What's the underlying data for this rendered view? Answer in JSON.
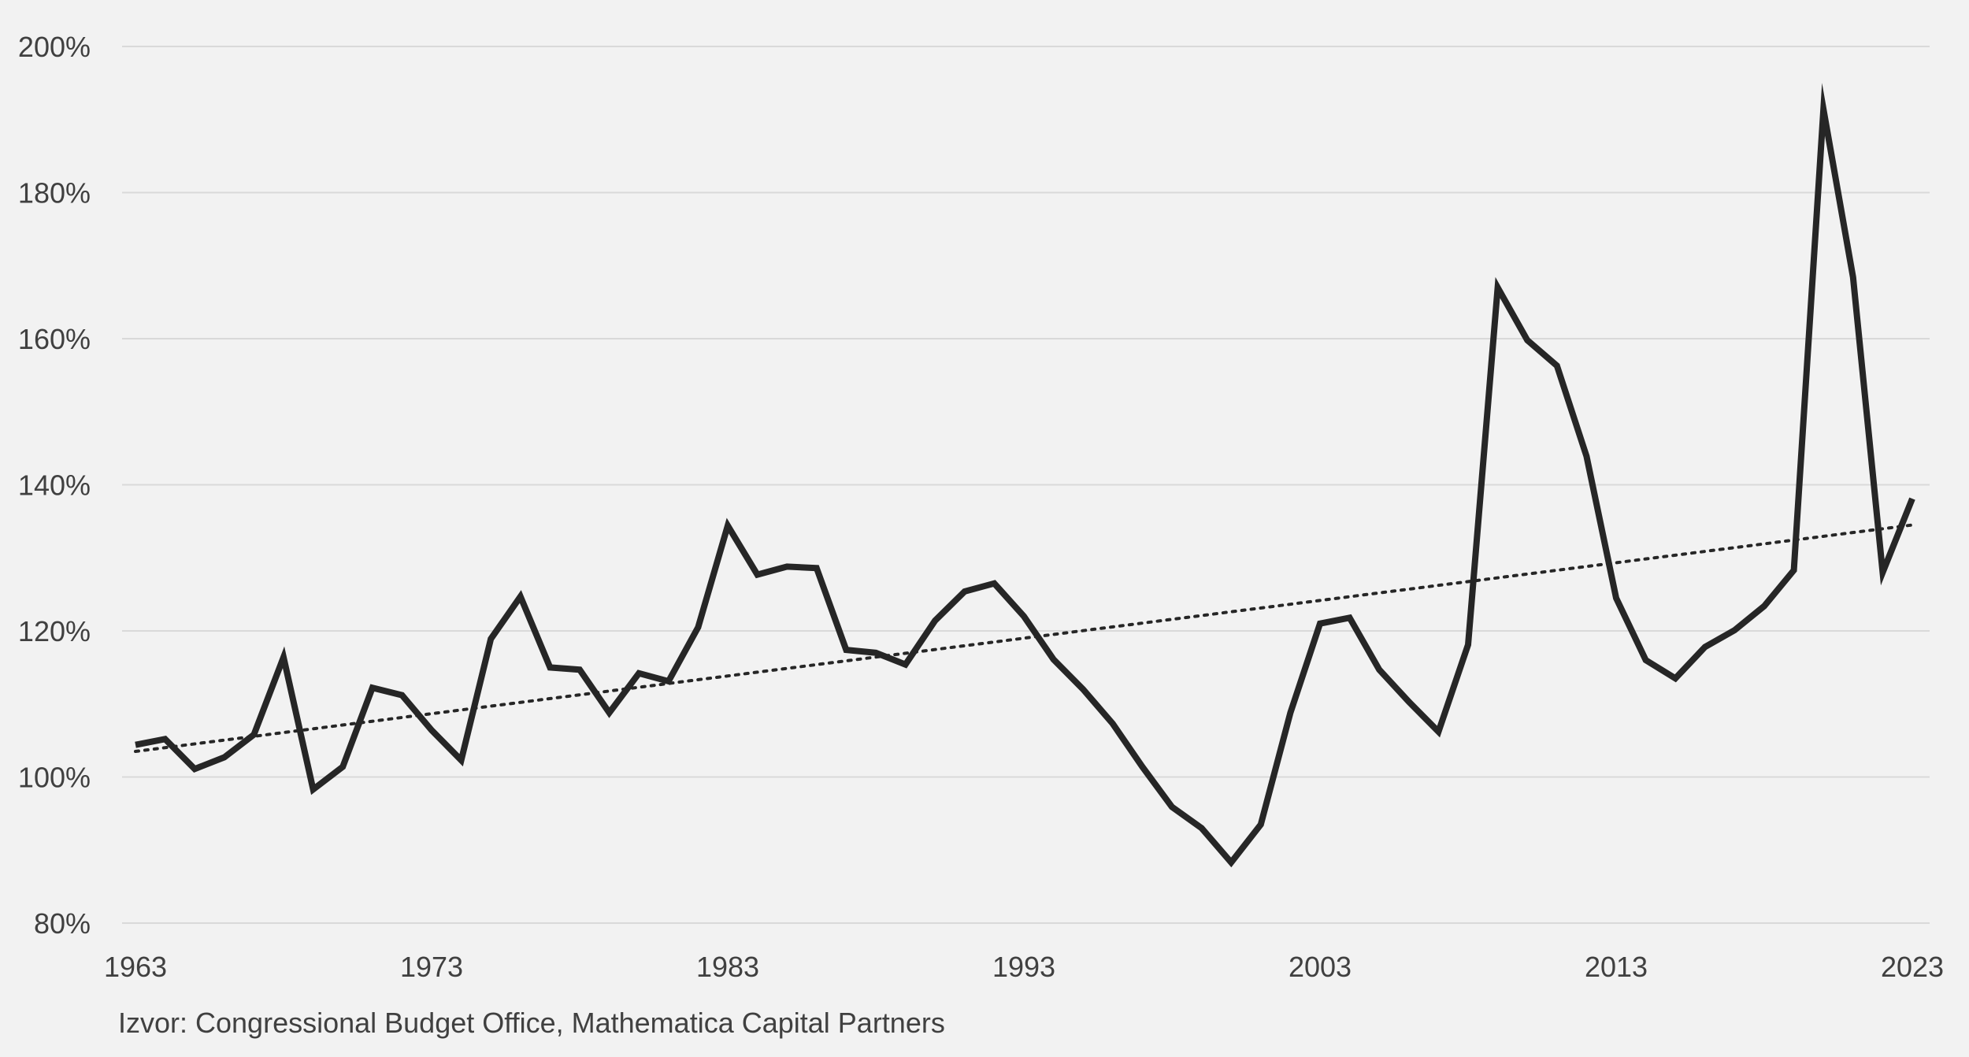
{
  "source_note": "Izvor: Congressional Budget Office, Mathematica Capital Partners",
  "colors": {
    "background": "#f2f2f2",
    "line": "#262626",
    "trendline": "#262626",
    "grid": "#d9d9d9",
    "text": "#404040"
  },
  "chart_data": {
    "type": "line",
    "title": "",
    "xlabel": "",
    "ylabel": "",
    "grid": true,
    "legend": "none",
    "xlim": [
      1963,
      2023
    ],
    "ylim": [
      80,
      200
    ],
    "x_ticks": [
      1963,
      1973,
      1983,
      1993,
      2003,
      2013,
      2023
    ],
    "y_ticks": [
      80,
      100,
      120,
      140,
      160,
      180,
      200
    ],
    "y_tick_labels": [
      "80%",
      "100%",
      "120%",
      "140%",
      "160%",
      "180%",
      "200%"
    ],
    "series": [
      {
        "style": "solid",
        "x": [
          1963,
          1964,
          1965,
          1966,
          1967,
          1968,
          1969,
          1970,
          1971,
          1972,
          1973,
          1974,
          1975,
          1976,
          1977,
          1978,
          1979,
          1980,
          1981,
          1982,
          1983,
          1984,
          1985,
          1986,
          1987,
          1988,
          1989,
          1990,
          1991,
          1992,
          1993,
          1994,
          1995,
          1996,
          1997,
          1998,
          1999,
          2000,
          2001,
          2002,
          2003,
          2004,
          2005,
          2006,
          2007,
          2008,
          2009,
          2010,
          2011,
          2012,
          2013,
          2014,
          2015,
          2016,
          2017,
          2018,
          2019,
          2020,
          2021,
          2022,
          2023
        ],
        "values": [
          104.4,
          105.2,
          101.1,
          102.7,
          105.8,
          116.4,
          98.3,
          101.4,
          112.2,
          111.2,
          106.4,
          102.3,
          118.9,
          124.7,
          115.0,
          114.7,
          108.8,
          114.2,
          113.1,
          120.5,
          134.4,
          127.7,
          128.8,
          128.6,
          117.4,
          117.0,
          115.4,
          121.4,
          125.4,
          126.5,
          122.0,
          116.1,
          112.0,
          107.3,
          101.4,
          95.9,
          93.0,
          88.3,
          93.5,
          108.8,
          121.0,
          121.8,
          114.7,
          110.3,
          106.2,
          118.1,
          167.0,
          159.8,
          156.3,
          143.9,
          124.5,
          116.0,
          113.5,
          117.8,
          120.1,
          123.4,
          128.3,
          191.4,
          168.4,
          128.0,
          138.1
        ]
      },
      {
        "style": "dotted",
        "kind": "linear trend",
        "x": [
          1963,
          2023
        ],
        "values": [
          103.5,
          134.5
        ]
      }
    ]
  }
}
